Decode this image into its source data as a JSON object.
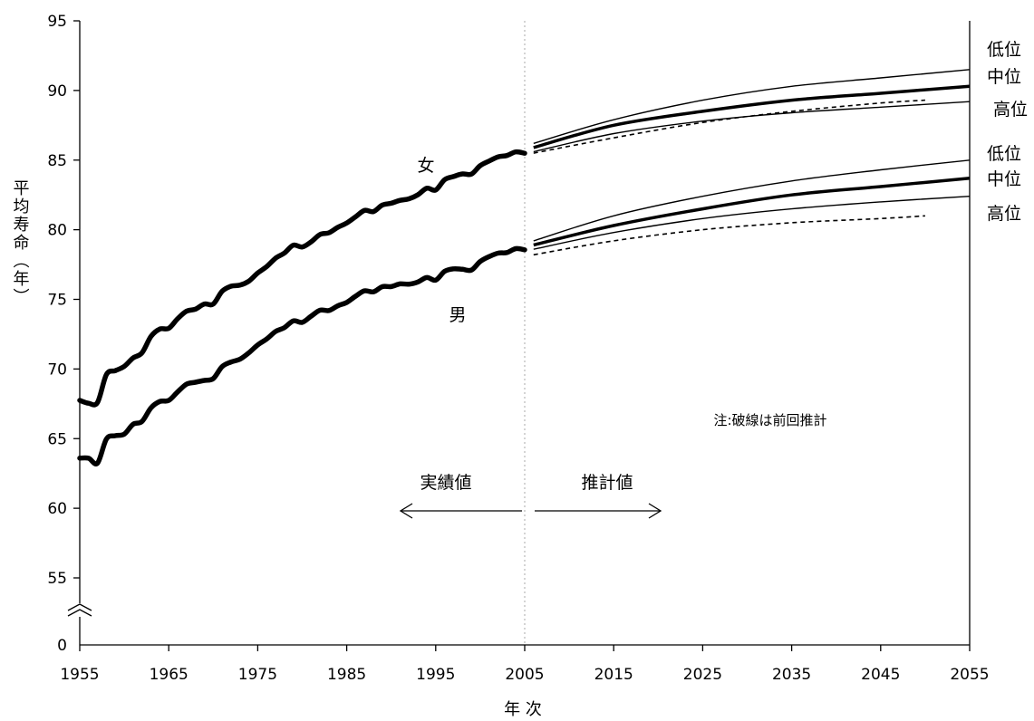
{
  "chart_data": {
    "type": "line",
    "xlabel": "年 次",
    "ylabel": "平均寿命（年）",
    "xlim": [
      1955,
      2055
    ],
    "ylim": [
      55,
      95
    ],
    "y_axis_break": true,
    "x_ticks": [
      "1955",
      "1965",
      "1975",
      "1985",
      "1995",
      "2005",
      "2015",
      "2025",
      "2035",
      "2045",
      "2055"
    ],
    "y_ticks": [
      "95",
      "90",
      "85",
      "80",
      "75",
      "70",
      "65",
      "60",
      "55"
    ],
    "y_zero_label": "0",
    "divider_year": 2005,
    "region_labels": {
      "actual": "実績値",
      "projected": "推計値"
    },
    "note": "注:破線は前回推計",
    "variant_labels": {
      "low": "低位",
      "mid": "中位",
      "high": "高位"
    },
    "series": [
      {
        "name": "女",
        "role": "actual",
        "x": [
          1955,
          1956,
          1957,
          1958,
          1959,
          1960,
          1961,
          1962,
          1963,
          1964,
          1965,
          1966,
          1967,
          1968,
          1969,
          1970,
          1971,
          1972,
          1973,
          1974,
          1975,
          1976,
          1977,
          1978,
          1979,
          1980,
          1981,
          1982,
          1983,
          1984,
          1985,
          1986,
          1987,
          1988,
          1989,
          1990,
          1991,
          1992,
          1993,
          1994,
          1995,
          1996,
          1997,
          1998,
          1999,
          2000,
          2001,
          2002,
          2003,
          2004,
          2005
        ],
        "y": [
          67.75,
          67.54,
          67.6,
          69.61,
          69.88,
          70.19,
          70.79,
          71.16,
          72.34,
          72.87,
          72.92,
          73.61,
          74.15,
          74.3,
          74.67,
          74.66,
          75.58,
          75.94,
          76.02,
          76.31,
          76.89,
          77.35,
          77.95,
          78.33,
          78.89,
          78.76,
          79.13,
          79.66,
          79.78,
          80.18,
          80.48,
          80.93,
          81.39,
          81.3,
          81.77,
          81.9,
          82.11,
          82.22,
          82.51,
          82.98,
          82.85,
          83.59,
          83.82,
          84.01,
          83.99,
          84.6,
          84.93,
          85.23,
          85.33,
          85.59,
          85.49
        ]
      },
      {
        "name": "男",
        "role": "actual",
        "x": [
          1955,
          1956,
          1957,
          1958,
          1959,
          1960,
          1961,
          1962,
          1963,
          1964,
          1965,
          1966,
          1967,
          1968,
          1969,
          1970,
          1971,
          1972,
          1973,
          1974,
          1975,
          1976,
          1977,
          1978,
          1979,
          1980,
          1981,
          1982,
          1983,
          1984,
          1985,
          1986,
          1987,
          1988,
          1989,
          1990,
          1991,
          1992,
          1993,
          1994,
          1995,
          1996,
          1997,
          1998,
          1999,
          2000,
          2001,
          2002,
          2003,
          2004,
          2005
        ],
        "y": [
          63.6,
          63.59,
          63.24,
          64.98,
          65.21,
          65.32,
          66.03,
          66.23,
          67.21,
          67.67,
          67.74,
          68.35,
          68.91,
          69.05,
          69.18,
          69.31,
          70.17,
          70.5,
          70.7,
          71.16,
          71.73,
          72.15,
          72.69,
          72.97,
          73.46,
          73.35,
          73.79,
          74.22,
          74.2,
          74.54,
          74.78,
          75.23,
          75.61,
          75.54,
          75.91,
          75.92,
          76.11,
          76.09,
          76.25,
          76.57,
          76.38,
          77.01,
          77.19,
          77.16,
          77.1,
          77.72,
          78.07,
          78.32,
          78.36,
          78.64,
          78.56
        ]
      },
      {
        "name": "女 低位",
        "role": "projection",
        "variant": "low",
        "x": [
          2006,
          2015,
          2025,
          2035,
          2045,
          2055
        ],
        "y": [
          86.2,
          87.9,
          89.3,
          90.3,
          90.9,
          91.5
        ]
      },
      {
        "name": "女 中位",
        "role": "projection",
        "variant": "mid",
        "x": [
          2006,
          2015,
          2025,
          2035,
          2045,
          2055
        ],
        "y": [
          85.9,
          87.5,
          88.5,
          89.3,
          89.8,
          90.3
        ]
      },
      {
        "name": "女 高位",
        "role": "projection",
        "variant": "high",
        "x": [
          2006,
          2015,
          2025,
          2035,
          2045,
          2055
        ],
        "y": [
          85.6,
          86.9,
          87.8,
          88.4,
          88.8,
          89.2
        ]
      },
      {
        "name": "女 前回推計",
        "role": "previous",
        "x": [
          2006,
          2015,
          2025,
          2035,
          2045,
          2050
        ],
        "y": [
          85.5,
          86.6,
          87.7,
          88.5,
          89.1,
          89.3
        ]
      },
      {
        "name": "男 低位",
        "role": "projection",
        "variant": "low",
        "x": [
          2006,
          2015,
          2025,
          2035,
          2045,
          2055
        ],
        "y": [
          79.2,
          81.0,
          82.4,
          83.5,
          84.3,
          85.0
        ]
      },
      {
        "name": "男 中位",
        "role": "projection",
        "variant": "mid",
        "x": [
          2006,
          2015,
          2025,
          2035,
          2045,
          2055
        ],
        "y": [
          78.9,
          80.3,
          81.5,
          82.5,
          83.1,
          83.7
        ]
      },
      {
        "name": "男 高位",
        "role": "projection",
        "variant": "high",
        "x": [
          2006,
          2015,
          2025,
          2035,
          2045,
          2055
        ],
        "y": [
          78.6,
          79.8,
          80.8,
          81.5,
          82.0,
          82.4
        ]
      },
      {
        "name": "男 前回推計",
        "role": "previous",
        "x": [
          2006,
          2015,
          2025,
          2035,
          2045,
          2050
        ],
        "y": [
          78.2,
          79.2,
          80.0,
          80.5,
          80.8,
          81.0
        ]
      }
    ]
  }
}
